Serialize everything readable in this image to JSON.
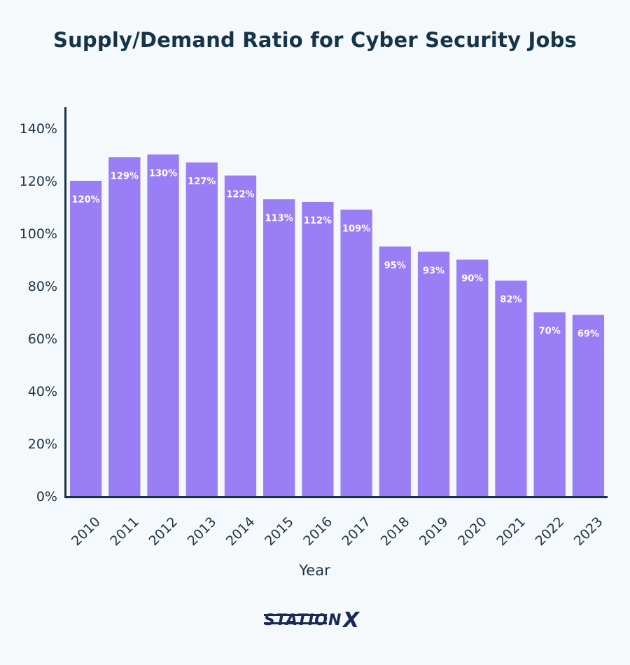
{
  "chart_data": {
    "type": "bar",
    "title": "Supply/Demand Ratio for Cyber Security Jobs",
    "xlabel": "Year",
    "ylabel": "",
    "categories": [
      "2010",
      "2011",
      "2012",
      "2013",
      "2014",
      "2015",
      "2016",
      "2017",
      "2018",
      "2019",
      "2020",
      "2021",
      "2022",
      "2023"
    ],
    "values": [
      120,
      129,
      130,
      127,
      122,
      113,
      112,
      109,
      95,
      93,
      90,
      82,
      70,
      69
    ],
    "value_labels": [
      "120%",
      "129%",
      "130%",
      "127%",
      "122%",
      "113%",
      "112%",
      "109%",
      "95%",
      "93%",
      "90%",
      "82%",
      "70%",
      "69%"
    ],
    "yticks": [
      "0%",
      "20%",
      "40%",
      "60%",
      "80%",
      "100%",
      "120%",
      "140%"
    ],
    "ylim": [
      0,
      148
    ],
    "bar_color": "#9a7ef5",
    "axis_color": "#163448",
    "grid": false,
    "legend": "none"
  },
  "logo": {
    "text_main": "STATION",
    "text_x": "X",
    "color": "#1a2a55"
  }
}
